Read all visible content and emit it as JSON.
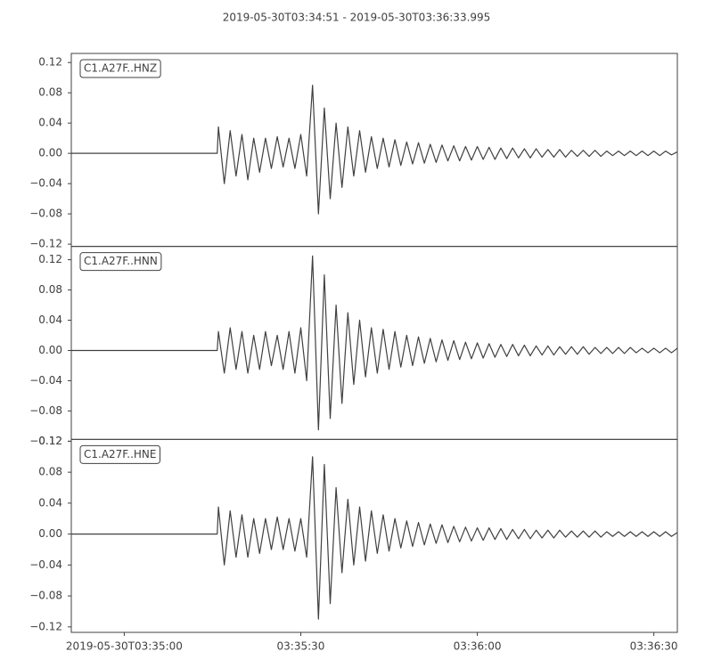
{
  "chart_data": {
    "type": "line",
    "title": "2019-05-30T03:34:51  -  2019-05-30T03:36:33.995",
    "x": [
      -9,
      15.8,
      16,
      17,
      18,
      19,
      20,
      21,
      22,
      23,
      24,
      25,
      26,
      27,
      28,
      29,
      30,
      31,
      32,
      33,
      34,
      35,
      36,
      37,
      38,
      39,
      40,
      41,
      42,
      43,
      44,
      45,
      46,
      47,
      48,
      49,
      50,
      51,
      52,
      53,
      54,
      55,
      56,
      57,
      58,
      59,
      60,
      61,
      62,
      63,
      64,
      65,
      66,
      67,
      68,
      69,
      70,
      71,
      72,
      73,
      74,
      75,
      76,
      77,
      78,
      79,
      80,
      81,
      82,
      83,
      84,
      85,
      86,
      87,
      88,
      89,
      90,
      91,
      92,
      93,
      94
    ],
    "xlim": [
      -9,
      93.995
    ],
    "xticks": [
      {
        "value": 0,
        "label": "2019-05-30T03:35:00"
      },
      {
        "value": 30,
        "label": "03:35:30"
      },
      {
        "value": 60,
        "label": "03:36:00"
      },
      {
        "value": 90,
        "label": "03:36:30"
      }
    ],
    "yticks": [
      {
        "value": -0.12,
        "label": "−0.12"
      },
      {
        "value": -0.08,
        "label": "−0.08"
      },
      {
        "value": -0.04,
        "label": "−0.04"
      },
      {
        "value": 0,
        "label": "0.00"
      },
      {
        "value": 0.04,
        "label": "0.04"
      },
      {
        "value": 0.08,
        "label": "0.08"
      },
      {
        "value": 0.12,
        "label": "0.12"
      }
    ],
    "series": [
      {
        "name": "C1.A27F..HNZ",
        "color": "#404040",
        "ylim": [
          -0.123,
          0.132
        ],
        "values": [
          0,
          0,
          0.035,
          -0.04,
          0.03,
          -0.03,
          0.025,
          -0.035,
          0.02,
          -0.025,
          0.02,
          -0.02,
          0.022,
          -0.018,
          0.02,
          -0.02,
          0.025,
          -0.03,
          0.09,
          -0.08,
          0.06,
          -0.06,
          0.04,
          -0.045,
          0.035,
          -0.03,
          0.03,
          -0.025,
          0.022,
          -0.02,
          0.02,
          -0.018,
          0.018,
          -0.016,
          0.015,
          -0.014,
          0.014,
          -0.013,
          0.012,
          -0.012,
          0.011,
          -0.01,
          0.01,
          -0.01,
          0.009,
          -0.009,
          0.009,
          -0.008,
          0.008,
          -0.008,
          0.007,
          -0.007,
          0.007,
          -0.006,
          0.006,
          -0.006,
          0.006,
          -0.005,
          0.005,
          -0.005,
          0.005,
          -0.005,
          0.004,
          -0.004,
          0.004,
          -0.004,
          0.004,
          -0.004,
          0.003,
          -0.003,
          0.003,
          -0.003,
          0.003,
          -0.003,
          0.003,
          -0.003,
          0.003,
          -0.003,
          0.003,
          -0.002,
          0.002
        ]
      },
      {
        "name": "C1.A27F..HNN",
        "color": "#404040",
        "ylim": [
          -0.1176,
          0.1376
        ],
        "values": [
          0,
          0,
          0.025,
          -0.03,
          0.03,
          -0.025,
          0.025,
          -0.03,
          0.02,
          -0.025,
          0.025,
          -0.02,
          0.02,
          -0.025,
          0.025,
          -0.03,
          0.03,
          -0.04,
          0.125,
          -0.105,
          0.1,
          -0.09,
          0.06,
          -0.07,
          0.05,
          -0.045,
          0.04,
          -0.035,
          0.03,
          -0.03,
          0.028,
          -0.025,
          0.025,
          -0.022,
          0.02,
          -0.02,
          0.018,
          -0.017,
          0.016,
          -0.015,
          0.014,
          -0.013,
          0.013,
          -0.012,
          0.011,
          -0.011,
          0.01,
          -0.01,
          0.009,
          -0.009,
          0.008,
          -0.008,
          0.008,
          -0.007,
          0.007,
          -0.007,
          0.006,
          -0.006,
          0.006,
          -0.006,
          0.005,
          -0.005,
          0.005,
          -0.005,
          0.005,
          -0.005,
          0.004,
          -0.004,
          0.004,
          -0.004,
          0.004,
          -0.004,
          0.004,
          -0.003,
          0.003,
          -0.003,
          0.003,
          -0.003,
          0.003,
          -0.003,
          0.003
        ]
      },
      {
        "name": "C1.A27F..HNE",
        "color": "#404040",
        "ylim": [
          -0.1271,
          0.1224
        ],
        "values": [
          0,
          0,
          0.035,
          -0.04,
          0.03,
          -0.03,
          0.025,
          -0.03,
          0.02,
          -0.025,
          0.02,
          -0.02,
          0.022,
          -0.02,
          0.02,
          -0.022,
          0.02,
          -0.03,
          0.1,
          -0.11,
          0.09,
          -0.09,
          0.06,
          -0.05,
          0.045,
          -0.04,
          0.035,
          -0.035,
          0.03,
          -0.025,
          0.025,
          -0.022,
          0.02,
          -0.018,
          0.017,
          -0.016,
          0.015,
          -0.014,
          0.013,
          -0.012,
          0.012,
          -0.011,
          0.01,
          -0.01,
          0.009,
          -0.009,
          0.008,
          -0.008,
          0.008,
          -0.007,
          0.007,
          -0.007,
          0.006,
          -0.006,
          0.006,
          -0.006,
          0.005,
          -0.005,
          0.005,
          -0.005,
          0.005,
          -0.004,
          0.004,
          -0.004,
          0.004,
          -0.004,
          0.004,
          -0.004,
          0.003,
          -0.003,
          0.003,
          -0.003,
          0.003,
          -0.003,
          0.003,
          -0.003,
          0.003,
          -0.003,
          0.003,
          -0.003,
          0.002
        ]
      }
    ]
  }
}
